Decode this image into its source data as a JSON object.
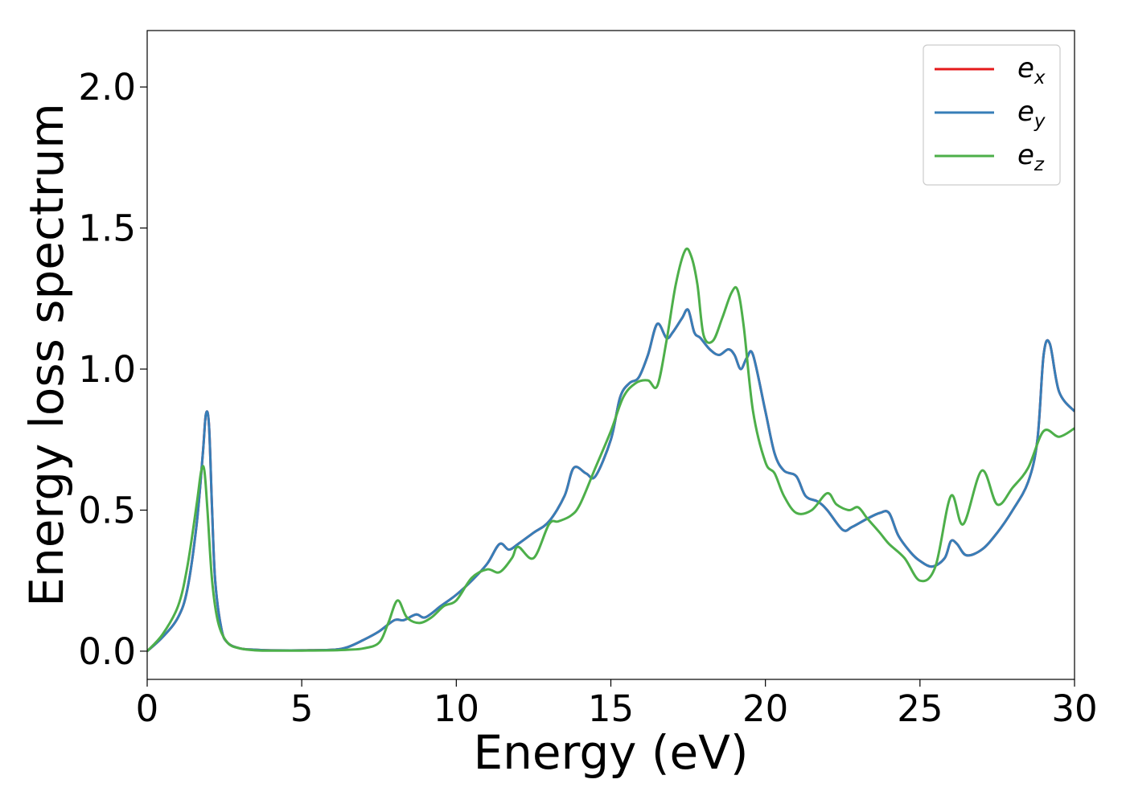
{
  "chart_data": {
    "type": "line",
    "xlabel": "Energy (eV)",
    "ylabel": "Energy loss spectrum",
    "xlim": [
      0,
      30
    ],
    "ylim": [
      -0.1,
      2.2
    ],
    "x_ticks": [
      "0",
      "5",
      "10",
      "15",
      "20",
      "25",
      "30"
    ],
    "y_ticks": [
      "0.0",
      "0.5",
      "1.0",
      "1.5",
      "2.0"
    ],
    "grid": false,
    "legend_position": "top-right",
    "series": [
      {
        "name": "e_x",
        "legend_base": "e",
        "legend_sub": "x",
        "color": "#e41a1c",
        "x": [
          0,
          0.5,
          1,
          1.3,
          1.6,
          1.8,
          1.9,
          2.0,
          2.1,
          2.2,
          2.4,
          2.6,
          3.0,
          3.5,
          4,
          5,
          6,
          6.5,
          7,
          7.5,
          8,
          8.3,
          8.7,
          9,
          9.5,
          10,
          10.5,
          11,
          11.4,
          11.7,
          12,
          12.5,
          13,
          13.5,
          13.8,
          14.2,
          14.5,
          15,
          15.3,
          15.6,
          15.9,
          16.2,
          16.5,
          16.8,
          17,
          17.3,
          17.5,
          17.7,
          17.9,
          18.2,
          18.5,
          18.8,
          19,
          19.2,
          19.4,
          19.6,
          20,
          20.3,
          20.6,
          21,
          21.3,
          21.7,
          22,
          22.5,
          22.8,
          23.3,
          23.7,
          24,
          24.3,
          24.7,
          25,
          25.4,
          25.8,
          26,
          26.2,
          26.5,
          27,
          27.5,
          28,
          28.5,
          28.8,
          29,
          29.2,
          29.5,
          30
        ],
        "values": [
          0,
          0.05,
          0.12,
          0.22,
          0.45,
          0.7,
          0.84,
          0.8,
          0.5,
          0.25,
          0.08,
          0.03,
          0.01,
          0.005,
          0.003,
          0.003,
          0.005,
          0.015,
          0.04,
          0.07,
          0.11,
          0.11,
          0.13,
          0.12,
          0.16,
          0.2,
          0.25,
          0.31,
          0.38,
          0.36,
          0.38,
          0.42,
          0.46,
          0.55,
          0.65,
          0.63,
          0.62,
          0.75,
          0.9,
          0.95,
          0.97,
          1.05,
          1.16,
          1.11,
          1.13,
          1.18,
          1.21,
          1.13,
          1.11,
          1.07,
          1.05,
          1.07,
          1.05,
          1.0,
          1.04,
          1.05,
          0.85,
          0.7,
          0.64,
          0.62,
          0.55,
          0.53,
          0.5,
          0.43,
          0.44,
          0.47,
          0.49,
          0.49,
          0.41,
          0.35,
          0.32,
          0.3,
          0.33,
          0.39,
          0.38,
          0.34,
          0.36,
          0.42,
          0.5,
          0.6,
          0.75,
          1.05,
          1.09,
          0.92,
          0.85
        ]
      },
      {
        "name": "e_y",
        "legend_base": "e",
        "legend_sub": "y",
        "color": "#377eb8",
        "x": [
          0,
          0.5,
          1,
          1.3,
          1.6,
          1.8,
          1.9,
          2.0,
          2.1,
          2.2,
          2.4,
          2.6,
          3.0,
          3.5,
          4,
          5,
          6,
          6.5,
          7,
          7.5,
          8,
          8.3,
          8.7,
          9,
          9.5,
          10,
          10.5,
          11,
          11.4,
          11.7,
          12,
          12.5,
          13,
          13.5,
          13.8,
          14.2,
          14.5,
          15,
          15.3,
          15.6,
          15.9,
          16.2,
          16.5,
          16.8,
          17,
          17.3,
          17.5,
          17.7,
          17.9,
          18.2,
          18.5,
          18.8,
          19,
          19.2,
          19.4,
          19.6,
          20,
          20.3,
          20.6,
          21,
          21.3,
          21.7,
          22,
          22.5,
          22.8,
          23.3,
          23.7,
          24,
          24.3,
          24.7,
          25,
          25.4,
          25.8,
          26,
          26.2,
          26.5,
          27,
          27.5,
          28,
          28.5,
          28.8,
          29,
          29.2,
          29.5,
          30
        ],
        "values": [
          0,
          0.05,
          0.12,
          0.22,
          0.45,
          0.7,
          0.84,
          0.8,
          0.5,
          0.25,
          0.08,
          0.03,
          0.01,
          0.005,
          0.003,
          0.003,
          0.005,
          0.015,
          0.04,
          0.07,
          0.11,
          0.11,
          0.13,
          0.12,
          0.16,
          0.2,
          0.25,
          0.31,
          0.38,
          0.36,
          0.38,
          0.42,
          0.46,
          0.55,
          0.65,
          0.63,
          0.62,
          0.75,
          0.9,
          0.95,
          0.97,
          1.05,
          1.16,
          1.11,
          1.13,
          1.18,
          1.21,
          1.13,
          1.11,
          1.07,
          1.05,
          1.07,
          1.05,
          1.0,
          1.04,
          1.05,
          0.85,
          0.7,
          0.64,
          0.62,
          0.55,
          0.53,
          0.5,
          0.43,
          0.44,
          0.47,
          0.49,
          0.49,
          0.41,
          0.35,
          0.32,
          0.3,
          0.33,
          0.39,
          0.38,
          0.34,
          0.36,
          0.42,
          0.5,
          0.6,
          0.75,
          1.05,
          1.09,
          0.92,
          0.85
        ]
      },
      {
        "name": "e_z",
        "legend_base": "e",
        "legend_sub": "z",
        "color": "#4daf4a",
        "x": [
          0,
          0.5,
          1,
          1.3,
          1.6,
          1.75,
          1.85,
          1.95,
          2.1,
          2.3,
          2.6,
          3.0,
          3.5,
          4,
          5,
          6,
          6.5,
          7,
          7.5,
          7.8,
          8.1,
          8.4,
          8.8,
          9.2,
          9.6,
          10,
          10.5,
          11,
          11.4,
          11.8,
          12,
          12.5,
          13,
          13.3,
          13.7,
          14,
          14.5,
          15,
          15.4,
          15.8,
          16.2,
          16.5,
          16.8,
          17.1,
          17.4,
          17.6,
          17.8,
          18.0,
          18.3,
          18.6,
          18.9,
          19.1,
          19.3,
          19.6,
          20,
          20.3,
          20.6,
          21,
          21.5,
          22,
          22.3,
          22.7,
          23,
          23.3,
          23.7,
          24,
          24.5,
          25,
          25.5,
          26,
          26.4,
          27,
          27.5,
          28,
          28.5,
          29,
          29.5,
          30
        ],
        "values": [
          0,
          0.06,
          0.16,
          0.3,
          0.52,
          0.64,
          0.64,
          0.5,
          0.25,
          0.1,
          0.03,
          0.01,
          0.003,
          0.002,
          0.002,
          0.003,
          0.005,
          0.01,
          0.03,
          0.1,
          0.18,
          0.12,
          0.1,
          0.12,
          0.16,
          0.18,
          0.26,
          0.29,
          0.28,
          0.33,
          0.37,
          0.33,
          0.45,
          0.46,
          0.48,
          0.52,
          0.65,
          0.78,
          0.9,
          0.95,
          0.96,
          0.94,
          1.1,
          1.3,
          1.42,
          1.4,
          1.3,
          1.12,
          1.1,
          1.18,
          1.27,
          1.28,
          1.15,
          0.85,
          0.67,
          0.63,
          0.55,
          0.49,
          0.5,
          0.56,
          0.52,
          0.5,
          0.51,
          0.47,
          0.42,
          0.38,
          0.33,
          0.25,
          0.3,
          0.55,
          0.45,
          0.64,
          0.52,
          0.58,
          0.65,
          0.78,
          0.76,
          0.79
        ]
      }
    ]
  }
}
